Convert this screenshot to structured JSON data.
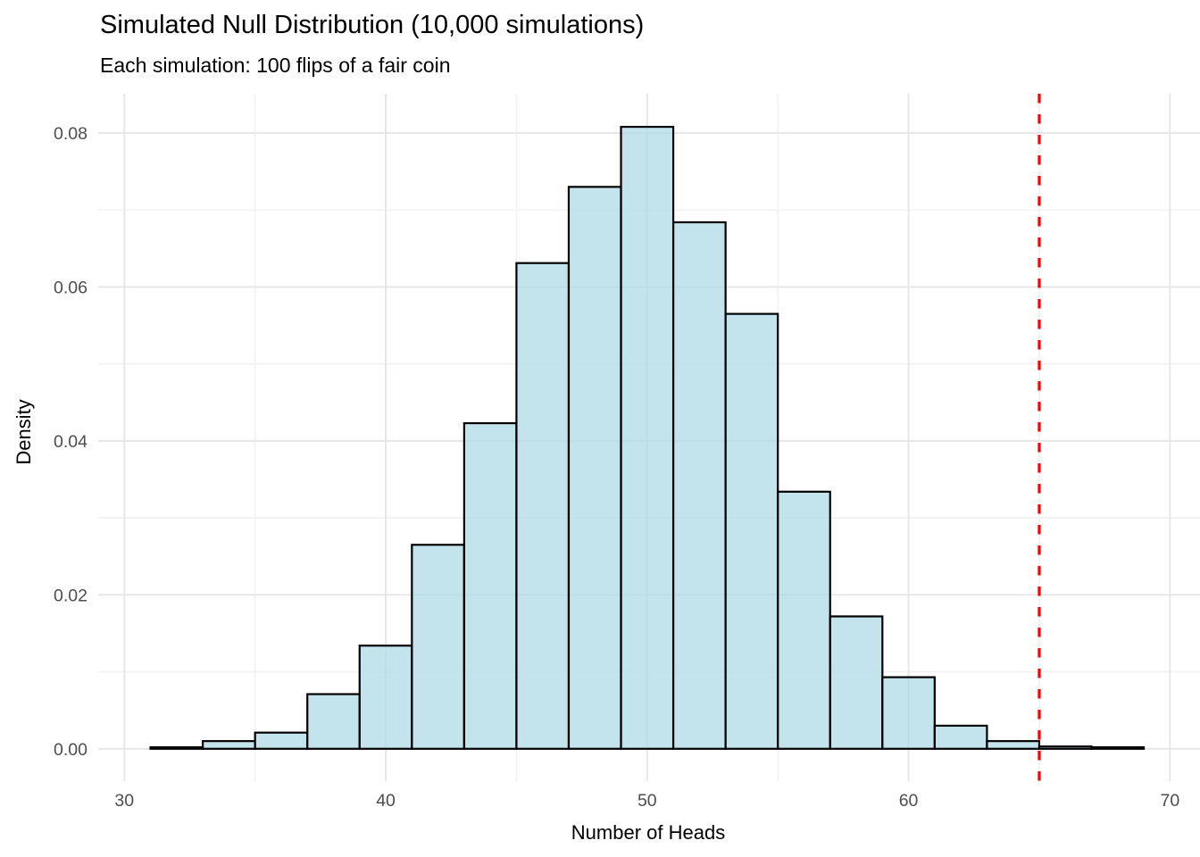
{
  "chart_data": {
    "type": "histogram",
    "title": "Simulated Null Distribution (10,000 simulations)",
    "subtitle": "Each simulation: 100 flips of a fair coin",
    "xlabel": "Number of Heads",
    "ylabel": "Density",
    "bin_width": 2,
    "bin_edges": [
      31,
      33,
      35,
      37,
      39,
      41,
      43,
      45,
      47,
      49,
      51,
      53,
      55,
      57,
      59,
      61,
      63,
      65,
      67,
      69
    ],
    "densities": [
      0.0002,
      0.001,
      0.0021,
      0.0071,
      0.0134,
      0.0265,
      0.0423,
      0.0631,
      0.073,
      0.0808,
      0.0684,
      0.0565,
      0.0334,
      0.0172,
      0.0093,
      0.003,
      0.001,
      0.0003,
      0.0002
    ],
    "x_axis": {
      "ticks": [
        30,
        40,
        50,
        60,
        70
      ],
      "tick_labels": [
        "30",
        "40",
        "50",
        "60",
        "70"
      ],
      "minor_ticks": [
        35,
        45,
        55,
        65
      ],
      "range": [
        29.0,
        71.15
      ]
    },
    "y_axis": {
      "ticks": [
        0,
        0.02,
        0.04,
        0.06,
        0.08
      ],
      "tick_labels": [
        "0.00",
        "0.02",
        "0.04",
        "0.06",
        "0.08"
      ],
      "minor_ticks": [
        0.01,
        0.03,
        0.05,
        0.07
      ],
      "range": [
        -0.0042,
        0.0851
      ]
    },
    "reference_line": {
      "x": 65,
      "style": "dashed",
      "color": "#FF0000"
    },
    "grid": "major+minor",
    "legend": "none",
    "colors": {
      "bar_fill": "#ADD8E6",
      "bar_fill_opacity": 0.73,
      "bar_stroke": "#000000",
      "grid_major": "#E6E6E6",
      "grid_minor": "#F2F2F2",
      "axis_text": "#4D4D4D",
      "text": "#000000",
      "background": "#FFFFFF",
      "reference": "#FF0000"
    }
  }
}
